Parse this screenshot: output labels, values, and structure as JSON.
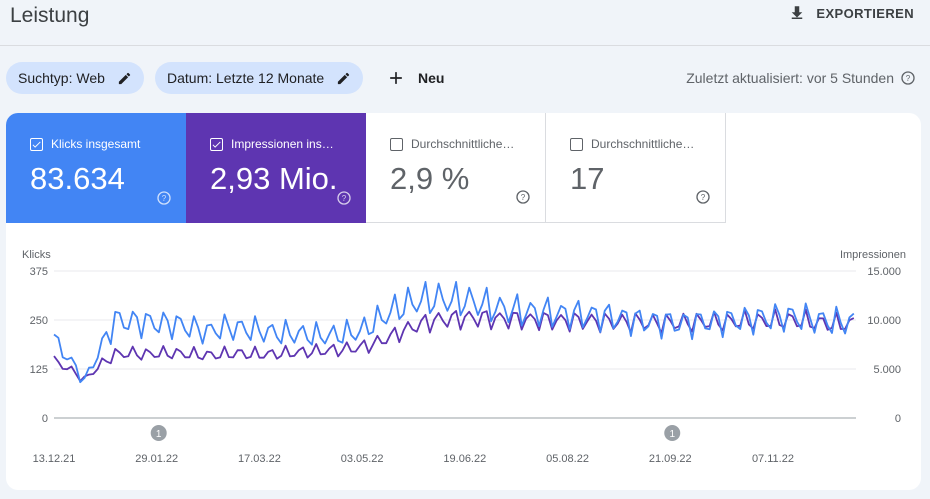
{
  "header": {
    "title": "Leistung",
    "export_label": "EXPORTIEREN"
  },
  "filters": {
    "search_type": "Suchtyp: Web",
    "date": "Datum: Letzte 12 Monate",
    "new_label": "Neu",
    "updated": "Zuletzt aktualisiert: vor 5 Stunden"
  },
  "metrics": [
    {
      "label": "Klicks insgesamt",
      "value": "83.634",
      "checked": true,
      "color": "#4285f4"
    },
    {
      "label": "Impressionen ins…",
      "value": "2,93 Mio.",
      "checked": true,
      "color": "#5e35b1"
    },
    {
      "label": "Durchschnittliche…",
      "value": "2,9 %",
      "checked": false
    },
    {
      "label": "Durchschnittliche…",
      "value": "17",
      "checked": false
    }
  ],
  "chart_data": {
    "type": "line",
    "left_axis_label": "Klicks",
    "right_axis_label": "Impressionen",
    "y_left_ticks": [
      "375",
      "250",
      "125",
      "0"
    ],
    "y_right_ticks": [
      "15.000",
      "10.000",
      "5.000",
      "0"
    ],
    "ylim_left": [
      0,
      375
    ],
    "ylim_right": [
      0,
      15000
    ],
    "x_ticks": [
      "13.12.21",
      "29.01.22",
      "17.03.22",
      "03.05.22",
      "19.06.22",
      "05.08.22",
      "21.09.22",
      "07.11.22"
    ],
    "annotations": [
      {
        "label": "1",
        "date": "29.01.22"
      },
      {
        "label": "1",
        "date": "21.09.22"
      }
    ],
    "grid": true,
    "series": [
      {
        "name": "Klicks insgesamt",
        "axis": "left",
        "color": "#4285f4",
        "points": [
          [
            "13.12.21",
            200
          ],
          [
            "20.12.21",
            150
          ],
          [
            "27.12.21",
            95
          ],
          [
            "03.01.22",
            175
          ],
          [
            "10.01.22",
            250
          ],
          [
            "17.01.22",
            245
          ],
          [
            "24.01.22",
            245
          ],
          [
            "31.01.22",
            240
          ],
          [
            "07.02.22",
            240
          ],
          [
            "14.02.22",
            230
          ],
          [
            "21.02.22",
            220
          ],
          [
            "28.02.22",
            230
          ],
          [
            "07.03.22",
            230
          ],
          [
            "14.03.22",
            225
          ],
          [
            "21.03.22",
            220
          ],
          [
            "28.03.22",
            215
          ],
          [
            "04.04.22",
            215
          ],
          [
            "11.04.22",
            210
          ],
          [
            "18.04.22",
            210
          ],
          [
            "25.04.22",
            215
          ],
          [
            "02.05.22",
            220
          ],
          [
            "09.05.22",
            245
          ],
          [
            "16.05.22",
            270
          ],
          [
            "23.05.22",
            290
          ],
          [
            "30.05.22",
            300
          ],
          [
            "06.06.22",
            305
          ],
          [
            "13.06.22",
            300
          ],
          [
            "20.06.22",
            300
          ],
          [
            "27.06.22",
            290
          ],
          [
            "04.07.22",
            280
          ],
          [
            "11.07.22",
            275
          ],
          [
            "18.07.22",
            270
          ],
          [
            "25.07.22",
            270
          ],
          [
            "01.08.22",
            265
          ],
          [
            "08.08.22",
            265
          ],
          [
            "15.08.22",
            262
          ],
          [
            "22.08.22",
            260
          ],
          [
            "29.08.22",
            255
          ],
          [
            "05.09.22",
            250
          ],
          [
            "12.09.22",
            245
          ],
          [
            "19.09.22",
            245
          ],
          [
            "26.09.22",
            240
          ],
          [
            "03.10.22",
            245
          ],
          [
            "10.10.22",
            245
          ],
          [
            "17.10.22",
            250
          ],
          [
            "24.10.22",
            250
          ],
          [
            "31.10.22",
            255
          ],
          [
            "07.11.22",
            255
          ],
          [
            "14.11.22",
            260
          ],
          [
            "21.11.22",
            255
          ],
          [
            "28.11.22",
            250
          ],
          [
            "05.12.22",
            245
          ]
        ]
      },
      {
        "name": "Impressionen insgesamt",
        "axis": "right",
        "color": "#5e35b1",
        "points": [
          [
            "13.12.21",
            5800
          ],
          [
            "20.12.21",
            5000
          ],
          [
            "27.12.21",
            3900
          ],
          [
            "03.01.22",
            5400
          ],
          [
            "10.01.22",
            6500
          ],
          [
            "17.01.22",
            6600
          ],
          [
            "24.01.22",
            6500
          ],
          [
            "31.01.22",
            6600
          ],
          [
            "07.02.22",
            6600
          ],
          [
            "14.02.22",
            6500
          ],
          [
            "21.02.22",
            6400
          ],
          [
            "28.02.22",
            6500
          ],
          [
            "07.03.22",
            6600
          ],
          [
            "14.03.22",
            6500
          ],
          [
            "21.03.22",
            6500
          ],
          [
            "28.03.22",
            6600
          ],
          [
            "04.04.22",
            6700
          ],
          [
            "11.04.22",
            6800
          ],
          [
            "18.04.22",
            6900
          ],
          [
            "25.04.22",
            7000
          ],
          [
            "02.05.22",
            7200
          ],
          [
            "09.05.22",
            7600
          ],
          [
            "16.05.22",
            8300
          ],
          [
            "23.05.22",
            9000
          ],
          [
            "30.05.22",
            9600
          ],
          [
            "06.06.22",
            10000
          ],
          [
            "13.06.22",
            10100
          ],
          [
            "20.06.22",
            10200
          ],
          [
            "27.06.22",
            10200
          ],
          [
            "04.07.22",
            10100
          ],
          [
            "11.07.22",
            10100
          ],
          [
            "18.07.22",
            10000
          ],
          [
            "25.07.22",
            10000
          ],
          [
            "01.08.22",
            9900
          ],
          [
            "08.08.22",
            9900
          ],
          [
            "15.08.22",
            9900
          ],
          [
            "22.08.22",
            9800
          ],
          [
            "29.08.22",
            9800
          ],
          [
            "05.09.22",
            9800
          ],
          [
            "12.09.22",
            9700
          ],
          [
            "19.09.22",
            9700
          ],
          [
            "26.09.22",
            9700
          ],
          [
            "03.10.22",
            9800
          ],
          [
            "10.10.22",
            9800
          ],
          [
            "17.10.22",
            9800
          ],
          [
            "24.10.22",
            9900
          ],
          [
            "31.10.22",
            9900
          ],
          [
            "07.11.22",
            9900
          ],
          [
            "14.11.22",
            10000
          ],
          [
            "21.11.22",
            9900
          ],
          [
            "28.11.22",
            9700
          ],
          [
            "05.12.22",
            9600
          ]
        ]
      }
    ]
  }
}
